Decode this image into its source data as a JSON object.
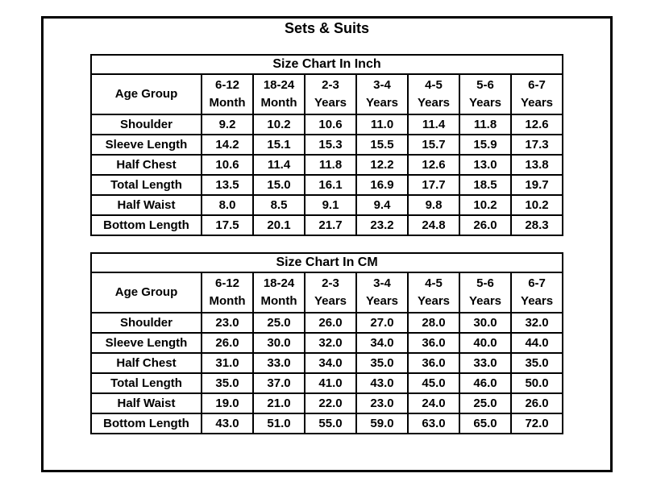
{
  "page": {
    "title": "Sets & Suits"
  },
  "colors": {
    "text": "#000000",
    "background": "#ffffff",
    "border": "#000000"
  },
  "tables": [
    {
      "title": "Size Chart In Inch",
      "columns": [
        [
          "Age Group"
        ],
        [
          "6-12",
          "Month"
        ],
        [
          "18-24",
          "Month"
        ],
        [
          "2-3",
          "Years"
        ],
        [
          "3-4",
          "Years"
        ],
        [
          "4-5",
          "Years"
        ],
        [
          "5-6",
          "Years"
        ],
        [
          "6-7",
          "Years"
        ]
      ],
      "rows": [
        {
          "label": "Shoulder",
          "values": [
            "9.2",
            "10.2",
            "10.6",
            "11.0",
            "11.4",
            "11.8",
            "12.6"
          ]
        },
        {
          "label": "Sleeve Length",
          "values": [
            "14.2",
            "15.1",
            "15.3",
            "15.5",
            "15.7",
            "15.9",
            "17.3"
          ]
        },
        {
          "label": "Half Chest",
          "values": [
            "10.6",
            "11.4",
            "11.8",
            "12.2",
            "12.6",
            "13.0",
            "13.8"
          ]
        },
        {
          "label": "Total Length",
          "values": [
            "13.5",
            "15.0",
            "16.1",
            "16.9",
            "17.7",
            "18.5",
            "19.7"
          ]
        },
        {
          "label": "Half Waist",
          "values": [
            "8.0",
            "8.5",
            "9.1",
            "9.4",
            "9.8",
            "10.2",
            "10.2"
          ]
        },
        {
          "label": "Bottom Length",
          "values": [
            "17.5",
            "20.1",
            "21.7",
            "23.2",
            "24.8",
            "26.0",
            "28.3"
          ]
        }
      ]
    },
    {
      "title": "Size Chart In CM",
      "columns": [
        [
          "Age Group"
        ],
        [
          "6-12",
          "Month"
        ],
        [
          "18-24",
          "Month"
        ],
        [
          "2-3",
          "Years"
        ],
        [
          "3-4",
          "Years"
        ],
        [
          "4-5",
          "Years"
        ],
        [
          "5-6",
          "Years"
        ],
        [
          "6-7",
          "Years"
        ]
      ],
      "rows": [
        {
          "label": "Shoulder",
          "values": [
            "23.0",
            "25.0",
            "26.0",
            "27.0",
            "28.0",
            "30.0",
            "32.0"
          ]
        },
        {
          "label": "Sleeve Length",
          "values": [
            "26.0",
            "30.0",
            "32.0",
            "34.0",
            "36.0",
            "40.0",
            "44.0"
          ]
        },
        {
          "label": "Half Chest",
          "values": [
            "31.0",
            "33.0",
            "34.0",
            "35.0",
            "36.0",
            "33.0",
            "35.0"
          ]
        },
        {
          "label": "Total Length",
          "values": [
            "35.0",
            "37.0",
            "41.0",
            "43.0",
            "45.0",
            "46.0",
            "50.0"
          ]
        },
        {
          "label": "Half Waist",
          "values": [
            "19.0",
            "21.0",
            "22.0",
            "23.0",
            "24.0",
            "25.0",
            "26.0"
          ]
        },
        {
          "label": "Bottom Length",
          "values": [
            "43.0",
            "51.0",
            "55.0",
            "59.0",
            "63.0",
            "65.0",
            "72.0"
          ]
        }
      ]
    }
  ]
}
